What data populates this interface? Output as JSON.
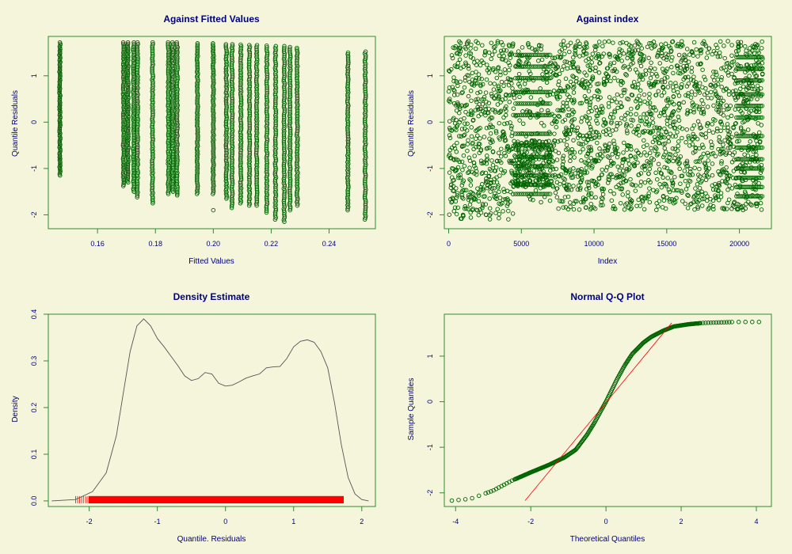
{
  "colors": {
    "background": "#f5f5dc",
    "box": "#2e8b2e",
    "points": "#006400",
    "text": "#000080",
    "density_line": "#555555",
    "rug": "#ff0000",
    "ref_line": "#ff0000"
  },
  "chart_data": [
    {
      "type": "scatter",
      "title": "Against Fitted Values",
      "xlabel": "Fitted Values",
      "ylabel": "Quantile Residuals",
      "xlim": [
        0.143,
        0.256
      ],
      "ylim": [
        -2.3,
        1.85
      ],
      "xticks": [
        "0.16",
        "0.18",
        "0.20",
        "0.22",
        "0.24"
      ],
      "yticks": [
        "-2",
        "-1",
        "0",
        "1"
      ],
      "columns": [
        {
          "x": 0.147,
          "ymin": -1.15,
          "ymax": 1.72
        },
        {
          "x": 0.169,
          "ymin": -1.38,
          "ymax": 1.72
        },
        {
          "x": 0.1705,
          "ymin": -1.3,
          "ymax": 1.72
        },
        {
          "x": 0.1725,
          "ymin": -1.5,
          "ymax": 1.72
        },
        {
          "x": 0.1738,
          "ymin": -1.62,
          "ymax": 1.72
        },
        {
          "x": 0.179,
          "ymin": -1.75,
          "ymax": 1.72
        },
        {
          "x": 0.1845,
          "ymin": -1.55,
          "ymax": 1.72
        },
        {
          "x": 0.186,
          "ymin": -1.5,
          "ymax": 1.72
        },
        {
          "x": 0.1875,
          "ymin": -1.58,
          "ymax": 1.72
        },
        {
          "x": 0.1945,
          "ymin": -1.55,
          "ymax": 1.7
        },
        {
          "x": 0.2,
          "ymin": -1.55,
          "ymax": 1.7
        },
        {
          "x": 0.2045,
          "ymin": -1.65,
          "ymax": 1.68
        },
        {
          "x": 0.2065,
          "ymin": -1.85,
          "ymax": 1.68
        },
        {
          "x": 0.2095,
          "ymin": -1.75,
          "ymax": 1.67
        },
        {
          "x": 0.2125,
          "ymin": -1.8,
          "ymax": 1.66
        },
        {
          "x": 0.215,
          "ymin": -1.8,
          "ymax": 1.66
        },
        {
          "x": 0.2185,
          "ymin": -1.95,
          "ymax": 1.65
        },
        {
          "x": 0.2215,
          "ymin": -2.1,
          "ymax": 1.64
        },
        {
          "x": 0.2245,
          "ymin": -2.15,
          "ymax": 1.64
        },
        {
          "x": 0.2265,
          "ymin": -1.9,
          "ymax": 1.62
        },
        {
          "x": 0.229,
          "ymin": -1.8,
          "ymax": 1.6
        },
        {
          "x": 0.2465,
          "ymin": -1.9,
          "ymax": 1.5
        },
        {
          "x": 0.2525,
          "ymin": -2.1,
          "ymax": 1.52
        }
      ],
      "outliers": [
        {
          "x": 0.2,
          "y": -1.9
        }
      ]
    },
    {
      "type": "scatter",
      "title": "Against  index",
      "xlabel": "Index",
      "ylabel": "Quantile Residuals",
      "xlim": [
        -300,
        22200
      ],
      "ylim": [
        -2.3,
        1.85
      ],
      "xticks": [
        "0",
        "5000",
        "10000",
        "15000",
        "20000"
      ],
      "yticks": [
        "-2",
        "-1",
        "0",
        "1"
      ],
      "n_points": 21600
    },
    {
      "type": "line",
      "title": "Density Estimate",
      "xlabel": "Quantile. Residuals",
      "ylabel": "Density",
      "xlim": [
        -2.6,
        2.2
      ],
      "ylim": [
        -0.012,
        0.4
      ],
      "xticks": [
        "-2",
        "-1",
        "0",
        "1",
        "2"
      ],
      "yticks": [
        "0.0",
        "0.1",
        "0.2",
        "0.3",
        "0.4"
      ],
      "x": [
        -2.55,
        -2.2,
        -1.95,
        -1.75,
        -1.6,
        -1.5,
        -1.4,
        -1.3,
        -1.2,
        -1.1,
        -1.0,
        -0.9,
        -0.8,
        -0.7,
        -0.6,
        -0.5,
        -0.4,
        -0.3,
        -0.2,
        -0.1,
        0.0,
        0.1,
        0.2,
        0.3,
        0.4,
        0.5,
        0.6,
        0.7,
        0.8,
        0.9,
        1.0,
        1.1,
        1.2,
        1.3,
        1.4,
        1.5,
        1.6,
        1.7,
        1.8,
        1.9,
        2.0,
        2.1
      ],
      "y": [
        0.0,
        0.003,
        0.02,
        0.06,
        0.14,
        0.23,
        0.32,
        0.375,
        0.39,
        0.375,
        0.348,
        0.33,
        0.31,
        0.29,
        0.268,
        0.258,
        0.262,
        0.275,
        0.272,
        0.252,
        0.246,
        0.248,
        0.255,
        0.263,
        0.268,
        0.272,
        0.285,
        0.287,
        0.288,
        0.305,
        0.33,
        0.342,
        0.345,
        0.34,
        0.32,
        0.285,
        0.21,
        0.12,
        0.05,
        0.015,
        0.003,
        0.0
      ],
      "rug": {
        "min": -2.0,
        "max": 1.73,
        "sparse_min": -2.2
      }
    },
    {
      "type": "scatter",
      "title": "Normal Q-Q Plot",
      "xlabel": "Theoretical Quantiles",
      "ylabel": "Sample Quantiles",
      "xlim": [
        -4.3,
        4.4
      ],
      "ylim": [
        -2.3,
        1.92
      ],
      "xticks": [
        "-4",
        "-2",
        "0",
        "2",
        "4"
      ],
      "yticks": [
        "-2",
        "-1",
        "0",
        "1"
      ],
      "qq_curve": {
        "x": [
          -4.1,
          -3.6,
          -3.0,
          -2.5,
          -2.0,
          -1.5,
          -1.1,
          -0.8,
          -0.5,
          -0.3,
          -0.15,
          0.0,
          0.15,
          0.3,
          0.5,
          0.7,
          1.0,
          1.2,
          1.5,
          1.8,
          2.2,
          2.6,
          3.0,
          3.4,
          4.1
        ],
        "y": [
          -2.17,
          -2.13,
          -1.95,
          -1.73,
          -1.55,
          -1.38,
          -1.22,
          -1.05,
          -0.72,
          -0.45,
          -0.22,
          0.0,
          0.25,
          0.5,
          0.8,
          1.05,
          1.3,
          1.42,
          1.55,
          1.65,
          1.7,
          1.73,
          1.74,
          1.75,
          1.75
        ]
      },
      "ref_line": {
        "x": [
          -2.15,
          1.75
        ],
        "y": [
          -2.17,
          1.73
        ]
      }
    }
  ]
}
